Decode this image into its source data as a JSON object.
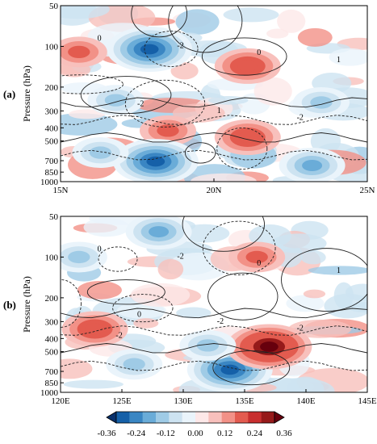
{
  "chart_data": [
    {
      "type": "heatmap",
      "panel_label": "(a)",
      "ylabel": "Pressure (hPa)",
      "y_ticks": [
        "50",
        "100",
        "200",
        "300",
        "400",
        "500",
        "700",
        "850",
        "1000"
      ],
      "y_tick_values": [
        50,
        100,
        200,
        300,
        400,
        500,
        700,
        850,
        1000
      ],
      "y_scale": "log",
      "x_ticks": [
        "15N",
        "20N",
        "25N"
      ],
      "x_tick_values": [
        15,
        20,
        25
      ],
      "xlim": [
        15,
        25
      ],
      "ylim": [
        1000,
        50
      ],
      "contour_labels": [
        "0",
        "-2",
        "-2",
        "1",
        "0",
        "-2",
        "1"
      ],
      "shading_anomalies": [
        {
          "x": 17.9,
          "p": 105,
          "value": -0.36
        },
        {
          "x": 15.6,
          "p": 110,
          "value": 0.2
        },
        {
          "x": 21.1,
          "p": 140,
          "value": 0.22
        },
        {
          "x": 21.1,
          "p": 470,
          "value": 0.24
        },
        {
          "x": 18.5,
          "p": 420,
          "value": 0.16
        },
        {
          "x": 18.1,
          "p": 710,
          "value": -0.34
        },
        {
          "x": 16.8,
          "p": 250,
          "value": -0.2
        },
        {
          "x": 23.2,
          "p": 760,
          "value": -0.24
        },
        {
          "x": 23.5,
          "p": 260,
          "value": -0.18
        },
        {
          "x": 16.3,
          "p": 610,
          "value": -0.2
        }
      ]
    },
    {
      "type": "heatmap",
      "panel_label": "(b)",
      "ylabel": "Pressure (hPa)",
      "y_ticks": [
        "50",
        "100",
        "200",
        "300",
        "400",
        "500",
        "700",
        "850",
        "1000"
      ],
      "y_tick_values": [
        50,
        100,
        200,
        300,
        400,
        500,
        700,
        850,
        1000
      ],
      "y_scale": "log",
      "x_ticks": [
        "120E",
        "125E",
        "130E",
        "135E",
        "140E",
        "145E"
      ],
      "x_tick_values": [
        120,
        125,
        130,
        135,
        140,
        145
      ],
      "xlim": [
        120,
        145
      ],
      "ylim": [
        1000,
        50
      ],
      "contour_labels": [
        "0",
        "0",
        "-2",
        "-2",
        "0",
        "-2",
        "1",
        "-2"
      ],
      "shading_anomalies": [
        {
          "x": 133.8,
          "p": 680,
          "value": -0.36
        },
        {
          "x": 137.0,
          "p": 460,
          "value": 0.34
        },
        {
          "x": 122.8,
          "p": 340,
          "value": 0.24
        },
        {
          "x": 121.5,
          "p": 100,
          "value": -0.2
        },
        {
          "x": 128.0,
          "p": 65,
          "value": -0.22
        },
        {
          "x": 136.0,
          "p": 100,
          "value": 0.2
        },
        {
          "x": 132.0,
          "p": 450,
          "value": -0.2
        },
        {
          "x": 126.0,
          "p": 620,
          "value": -0.16
        }
      ]
    }
  ],
  "colorbar": {
    "tick_labels": [
      "-0.36",
      "-0.24",
      "-0.12",
      "0.00",
      "0.12",
      "0.24",
      "0.36"
    ],
    "tick_values": [
      -0.36,
      -0.24,
      -0.12,
      0,
      0.12,
      0.24,
      0.36
    ],
    "colors": [
      "#08306b",
      "#1560a8",
      "#3a86c3",
      "#6aacd8",
      "#9fcbe6",
      "#cde3f1",
      "#eaf4fb",
      "#fde8e8",
      "#f8c0bc",
      "#f29187",
      "#e35b4f",
      "#c82f2f",
      "#961a1a",
      "#67000d"
    ]
  }
}
